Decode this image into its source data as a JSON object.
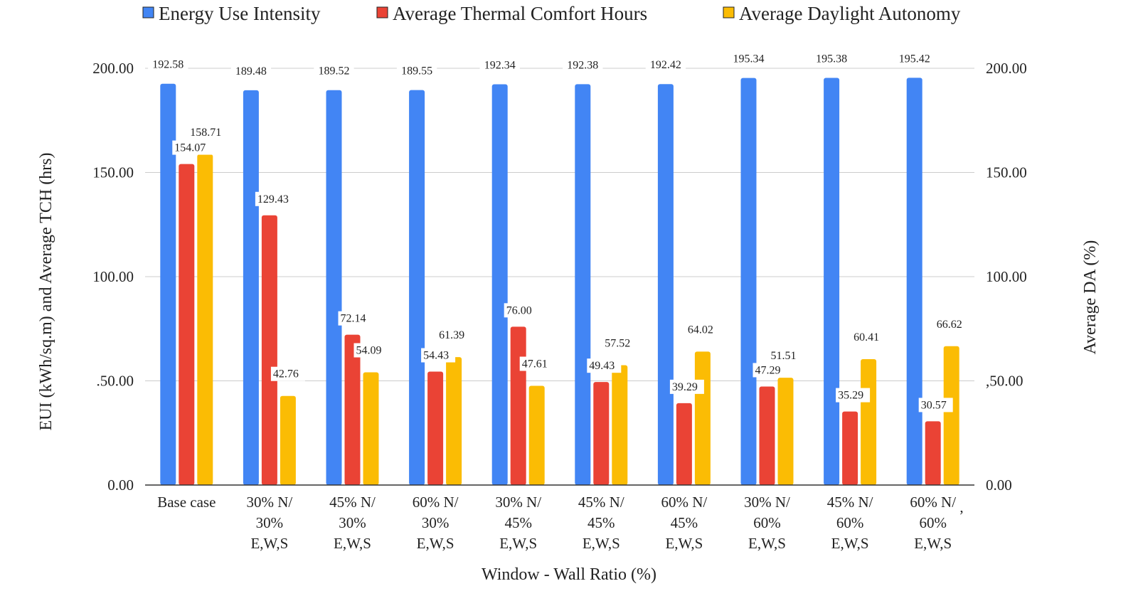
{
  "chart_data": {
    "type": "bar",
    "categories": [
      [
        "Base case"
      ],
      [
        "30% N/",
        "30%",
        "E,W,S"
      ],
      [
        "45% N/",
        "30%",
        "E,W,S"
      ],
      [
        "60% N/",
        "30%",
        "E,W,S"
      ],
      [
        "30% N/",
        "45%",
        "E,W,S"
      ],
      [
        "45% N/",
        "45%",
        "E,W,S"
      ],
      [
        "60% N/",
        "45%",
        "E,W,S"
      ],
      [
        "30% N/",
        "60%",
        "E,W,S"
      ],
      [
        "45% N/",
        "60%",
        "E,W,S"
      ],
      [
        "60% N/",
        "60%",
        "E,W,S"
      ]
    ],
    "series": [
      {
        "name": "Energy Use Intensity",
        "color": "#4285f4",
        "values": [
          192.58,
          189.48,
          189.52,
          189.55,
          192.34,
          192.38,
          192.42,
          195.34,
          195.38,
          195.42
        ]
      },
      {
        "name": "Average Thermal Comfort Hours",
        "color": "#ea4335",
        "values": [
          154.07,
          129.43,
          72.14,
          54.43,
          76.0,
          49.43,
          39.29,
          47.29,
          35.29,
          30.57
        ]
      },
      {
        "name": "Average Daylight Autonomy",
        "color": "#fbbc04",
        "values": [
          158.71,
          42.76,
          54.09,
          61.39,
          47.61,
          57.52,
          64.02,
          51.51,
          60.41,
          66.62
        ]
      }
    ],
    "data_labels": [
      [
        "192.58",
        "189.48",
        "189.52",
        "189.55",
        "192.34",
        "192.38",
        "192.42",
        "195.34",
        "195.38",
        "195.42"
      ],
      [
        "154.07",
        "129.43",
        "72.14",
        "54.43",
        "76.00",
        "49.43",
        "39.29",
        "47.29",
        "35.29",
        "30.57"
      ],
      [
        "158.71",
        "42.76",
        "54.09",
        "61.39",
        "47.61",
        "57.52",
        "64.02",
        "51.51",
        "60.41",
        "66.62"
      ]
    ],
    "xlabel": "Window - Wall Ratio (%)",
    "ylabel": "EUI (kWh/sq.m) and Average TCH (hrs)",
    "ylabel_right": "Average DA (%)",
    "ylim": [
      0,
      200
    ],
    "yticks": [
      0,
      50,
      100,
      150,
      200
    ],
    "yticks_left_labels": [
      "0.00",
      ".50.00",
      "100.00",
      "150.00",
      "200.00"
    ],
    "yticks_right_labels": [
      "0.00",
      ",50.00",
      "100.00",
      "150.00",
      "200.00"
    ],
    "stray_mark": ",",
    "grid": true,
    "legend": "top",
    "axis_color": "#333333",
    "grid_color": "#cccccc"
  }
}
